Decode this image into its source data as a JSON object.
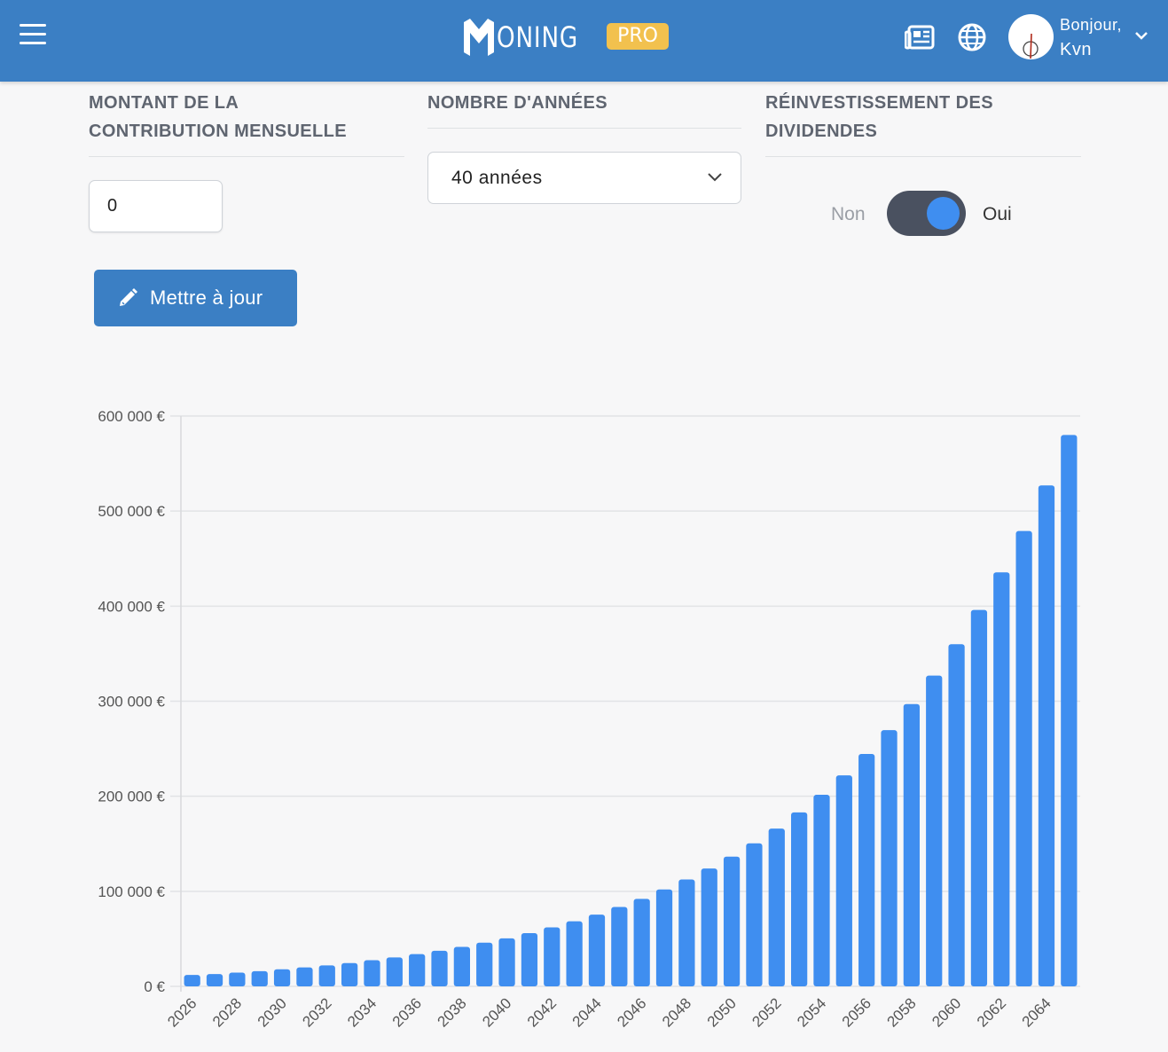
{
  "header": {
    "brand": "ONING",
    "badge": "PRO",
    "greeting": "Bonjour,",
    "username": "Kvn",
    "icons": [
      "menu-icon",
      "newspaper-icon",
      "globe-icon",
      "chevron-down-icon"
    ],
    "color": "#3b7fc4"
  },
  "form": {
    "contribution": {
      "label_line1": "MONTANT DE LA",
      "label_line2": "CONTRIBUTION MENSUELLE",
      "value": "0"
    },
    "years": {
      "label": "NOMBRE D'ANNÉES",
      "selected": "40 années"
    },
    "dividends": {
      "label_line1": "RÉINVESTISSEMENT DES",
      "label_line2": "DIVIDENDES",
      "off_label": "Non",
      "on_label": "Oui",
      "enabled": true
    },
    "update_button": "Mettre à jour"
  },
  "chart_data": {
    "type": "bar",
    "y_ticks": [
      "0 €",
      "100 000 €",
      "200 000 €",
      "300 000 €",
      "400 000 €",
      "500 000 €",
      "600 000 €"
    ],
    "ylim": [
      0,
      600000
    ],
    "x_tick_labels": [
      "2026",
      "2028",
      "2030",
      "2032",
      "2034",
      "2036",
      "2038",
      "2040",
      "2042",
      "2044",
      "2046",
      "2048",
      "2050",
      "2052",
      "2054",
      "2056",
      "2058",
      "2060",
      "2062",
      "2064"
    ],
    "categories": [
      "2026",
      "2027",
      "2028",
      "2029",
      "2030",
      "2031",
      "2032",
      "2033",
      "2034",
      "2035",
      "2036",
      "2037",
      "2038",
      "2039",
      "2040",
      "2041",
      "2042",
      "2043",
      "2044",
      "2045",
      "2046",
      "2047",
      "2048",
      "2049",
      "2050",
      "2051",
      "2052",
      "2053",
      "2054",
      "2055",
      "2056",
      "2057",
      "2058",
      "2059",
      "2060",
      "2061",
      "2062",
      "2063",
      "2064",
      "2065"
    ],
    "values": [
      12000,
      13000,
      14500,
      16000,
      18000,
      20000,
      22000,
      24500,
      27500,
      30500,
      34000,
      37500,
      41500,
      46000,
      50500,
      56000,
      62000,
      68500,
      75500,
      83500,
      92000,
      102000,
      112500,
      124000,
      136500,
      150500,
      166000,
      183000,
      201500,
      222000,
      244500,
      269500,
      297000,
      327000,
      360000,
      396000,
      435500,
      479000,
      527000,
      580000
    ],
    "color": "#3f8ef0",
    "grid": true
  }
}
